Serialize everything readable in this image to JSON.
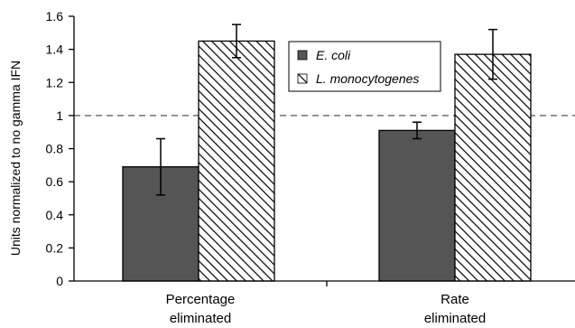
{
  "chart_data": {
    "type": "bar",
    "title": "",
    "xlabel": "",
    "ylabel": "Units normalized to no gamma IFN",
    "ylim": [
      0,
      1.6
    ],
    "yticks": [
      0,
      0.2,
      0.4,
      0.6,
      0.8,
      1,
      1.2,
      1.4,
      1.6
    ],
    "ytick_labels": [
      "0",
      "0.2",
      "0.4",
      "0.6",
      "0.8",
      "1",
      "1.2",
      "1.4",
      "1.6"
    ],
    "categories": [
      {
        "line1": "Percentage",
        "line2": "eliminated"
      },
      {
        "line1": "Rate",
        "line2": "eliminated"
      }
    ],
    "series": [
      {
        "name": "E. coli",
        "values": [
          0.69,
          0.91
        ],
        "errors": [
          0.17,
          0.05
        ],
        "fill": "solid",
        "color": "#555555"
      },
      {
        "name": "L. monocytogenes",
        "values": [
          1.45,
          1.37
        ],
        "errors": [
          0.1,
          0.15
        ],
        "fill": "hatched",
        "color": "#ffffff"
      }
    ],
    "reference_line": {
      "value": 1,
      "style": "dashed"
    },
    "legend_position": "top-right",
    "grid": false
  }
}
